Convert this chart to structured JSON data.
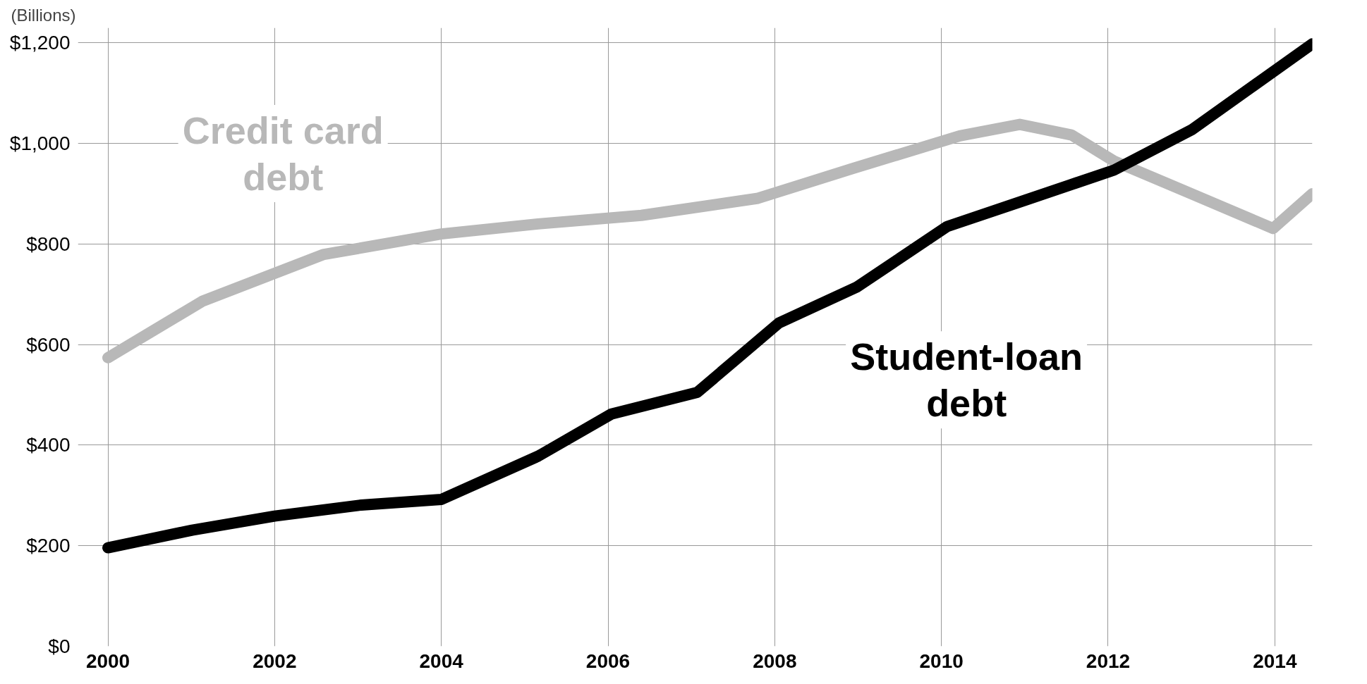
{
  "chart_data": {
    "type": "line",
    "ylabel": "(Billions)",
    "xlim": [
      1999.64,
      2014.45
    ],
    "ylim": [
      0,
      1230
    ],
    "xticks": [
      2000,
      2002,
      2004,
      2006,
      2008,
      2010,
      2012,
      2014
    ],
    "yticks": [
      {
        "value": 0,
        "label": "$0"
      },
      {
        "value": 200,
        "label": "$200"
      },
      {
        "value": 400,
        "label": "$400"
      },
      {
        "value": 600,
        "label": "$600"
      },
      {
        "value": 800,
        "label": "$800"
      },
      {
        "value": 1000,
        "label": "$1,000"
      },
      {
        "value": 1200,
        "label": "$1,200"
      }
    ],
    "grid": true,
    "marker": "none",
    "line_style": "solid",
    "series": [
      {
        "name": "Credit card debt",
        "color": "#b8b8b8",
        "x": [
          2000,
          2001.13,
          2002.58,
          2004,
          2005.16,
          2006.4,
          2007.8,
          2008.93,
          2010.22,
          2010.94,
          2011.56,
          2012.07,
          2013,
          2013.98,
          2014.45
        ],
        "values": [
          574,
          686,
          779,
          820,
          840,
          857,
          891,
          950,
          1015,
          1038,
          1017,
          965,
          900,
          831,
          900
        ]
      },
      {
        "name": "Student-loan debt",
        "color": "#000000",
        "x": [
          2000,
          2001.01,
          2002,
          2003.04,
          2004,
          2005.16,
          2006.04,
          2007.07,
          2008.05,
          2008.98,
          2010.07,
          2011,
          2012.07,
          2013,
          2014.45
        ],
        "values": [
          196,
          231,
          259,
          281,
          292,
          378,
          462,
          505,
          643,
          714,
          835,
          887,
          947,
          1027,
          1198
        ]
      }
    ]
  }
}
